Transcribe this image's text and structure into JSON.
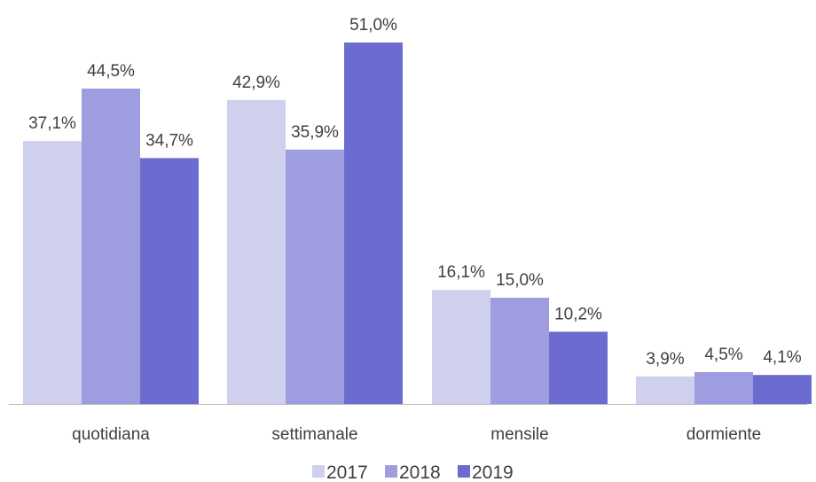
{
  "chart_data": {
    "type": "bar",
    "categories": [
      "quotidiana",
      "settimanale",
      "mensile",
      "dormiente"
    ],
    "series": [
      {
        "name": "2017",
        "values": [
          37.1,
          42.9,
          16.1,
          3.9
        ],
        "labels": [
          "37,1%",
          "42,9%",
          "16,1%",
          "3,9%"
        ],
        "color": "#cfcfee"
      },
      {
        "name": "2018",
        "values": [
          44.5,
          35.9,
          15.0,
          4.5
        ],
        "labels": [
          "44,5%",
          "35,9%",
          "15,0%",
          "4,5%"
        ],
        "color": "#9e9ddf"
      },
      {
        "name": "2019",
        "values": [
          34.7,
          51.0,
          10.2,
          4.1
        ],
        "labels": [
          "34,7%",
          "51,0%",
          "10,2%",
          "4,1%"
        ],
        "color": "#6b6bd0"
      }
    ],
    "ylim": [
      0,
      51
    ],
    "grid": false,
    "legend": "bottom-center",
    "axis_color": "#bfbfbf"
  }
}
